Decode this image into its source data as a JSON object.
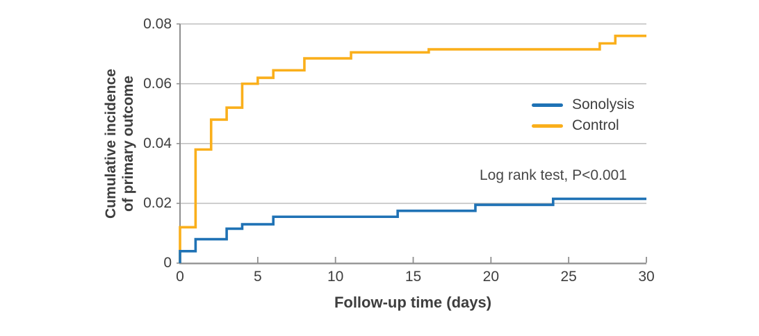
{
  "chart_data": {
    "type": "line",
    "subtype": "kaplan-meier-step",
    "title": "",
    "xlabel": "Follow-up time (days)",
    "ylabel": "Cumulative incidence of primary outcome",
    "ylabel_lines": [
      "Cumulative incidence",
      "of primary outcome"
    ],
    "xlim": [
      0,
      30
    ],
    "ylim": [
      0,
      0.08
    ],
    "xticks": [
      0,
      5,
      10,
      15,
      20,
      25,
      30
    ],
    "xtick_labels": [
      "0",
      "5",
      "10",
      "15",
      "20",
      "25",
      "30"
    ],
    "yticks": [
      0,
      0.02,
      0.04,
      0.06,
      0.08
    ],
    "ytick_labels": [
      "0",
      "0.02",
      "0.04",
      "0.06",
      "0.08"
    ],
    "grid": "horizontal-gridlines-on",
    "legend_position": "inside-right-middle",
    "annotation": "Log rank test, P<0.001",
    "step_mode": "post",
    "series": [
      {
        "name": "Control",
        "color": "#FAAF1B",
        "points": [
          [
            0,
            0
          ],
          [
            0,
            0.012
          ],
          [
            1,
            0.038
          ],
          [
            2,
            0.048
          ],
          [
            3,
            0.052
          ],
          [
            4,
            0.06
          ],
          [
            5,
            0.062
          ],
          [
            6,
            0.0645
          ],
          [
            8,
            0.0685
          ],
          [
            11,
            0.0705
          ],
          [
            16,
            0.0715
          ],
          [
            27,
            0.0735
          ],
          [
            28,
            0.076
          ],
          [
            30,
            0.076
          ]
        ]
      },
      {
        "name": "Sonolysis",
        "color": "#1F72B5",
        "points": [
          [
            0,
            0
          ],
          [
            0,
            0.004
          ],
          [
            1,
            0.008
          ],
          [
            3,
            0.0115
          ],
          [
            4,
            0.013
          ],
          [
            6,
            0.0155
          ],
          [
            14,
            0.0175
          ],
          [
            19,
            0.0195
          ],
          [
            24,
            0.0215
          ],
          [
            30,
            0.0215
          ]
        ]
      }
    ],
    "colors": {
      "grid": "#BEBEBE",
      "axis": "#8E8E8E",
      "text": "#3E3E3E",
      "sonolysis": "#1F72B5",
      "control": "#FAAF1B"
    }
  }
}
